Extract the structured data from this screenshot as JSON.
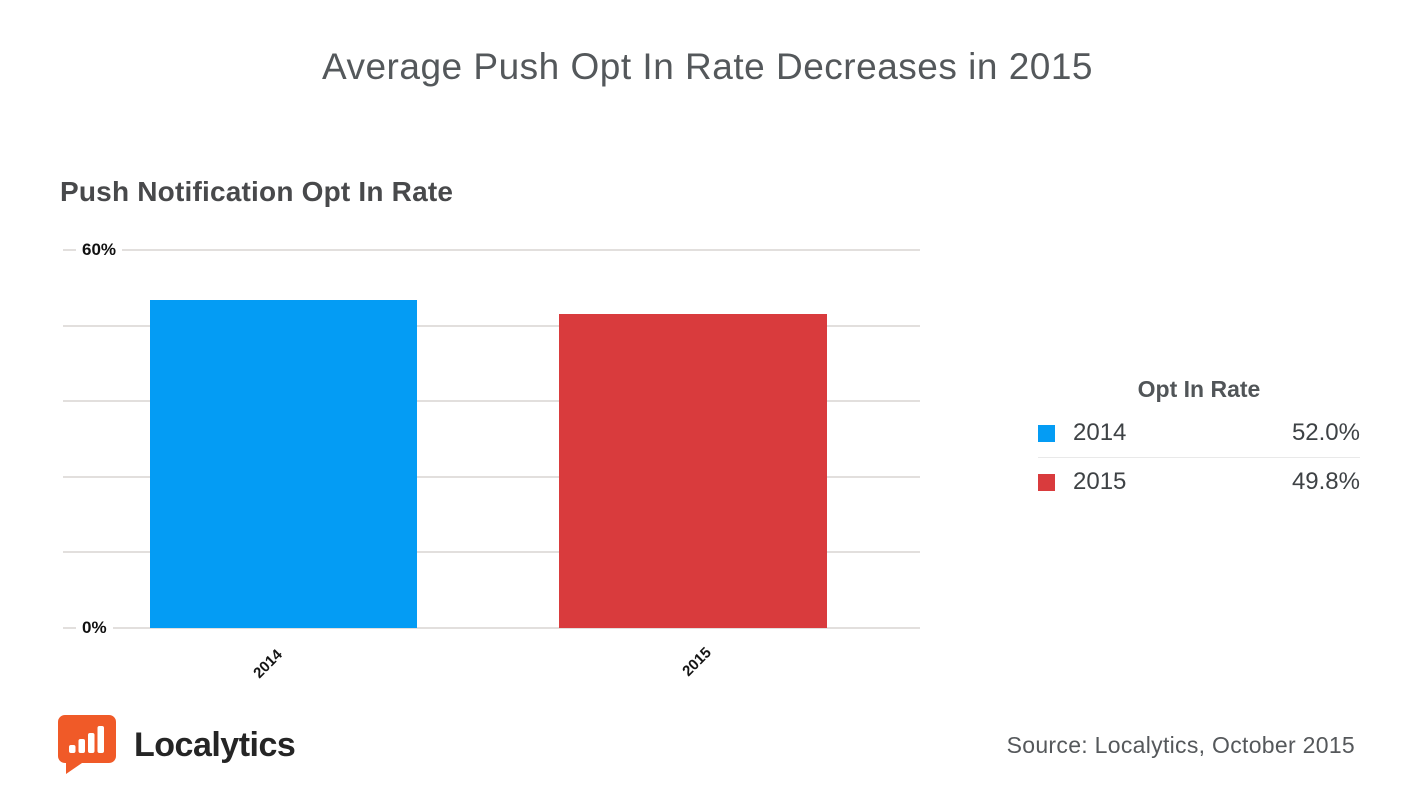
{
  "header": {
    "title": "Average Push Opt In Rate Decreases in 2015"
  },
  "chart": {
    "title": "Push Notification Opt In Rate",
    "y_axis": {
      "top_label": "60%",
      "bottom_label": "0%"
    }
  },
  "chart_data": {
    "type": "bar",
    "title": "Push Notification Opt In Rate",
    "categories": [
      "2014",
      "2015"
    ],
    "values": [
      52.0,
      49.8
    ],
    "value_labels": [
      "52.0%",
      "49.8%"
    ],
    "colors": [
      "#049cf4",
      "#d93b3d"
    ],
    "xlabel": "",
    "ylabel": "",
    "ylim": [
      0,
      60
    ],
    "ytick_labels_shown": [
      "0%",
      "60%"
    ],
    "gridline_values": [
      0,
      12,
      24,
      36,
      48,
      60
    ],
    "grid": true,
    "legend_position": "right"
  },
  "legend": {
    "title": "Opt In Rate",
    "rows": [
      {
        "label": "2014",
        "value": "52.0%",
        "color": "#049cf4"
      },
      {
        "label": "2015",
        "value": "49.8%",
        "color": "#d93b3d"
      }
    ]
  },
  "footer": {
    "brand": "Localytics",
    "source": "Source: Localytics, October 2015",
    "logo_color": "#f05a28"
  }
}
